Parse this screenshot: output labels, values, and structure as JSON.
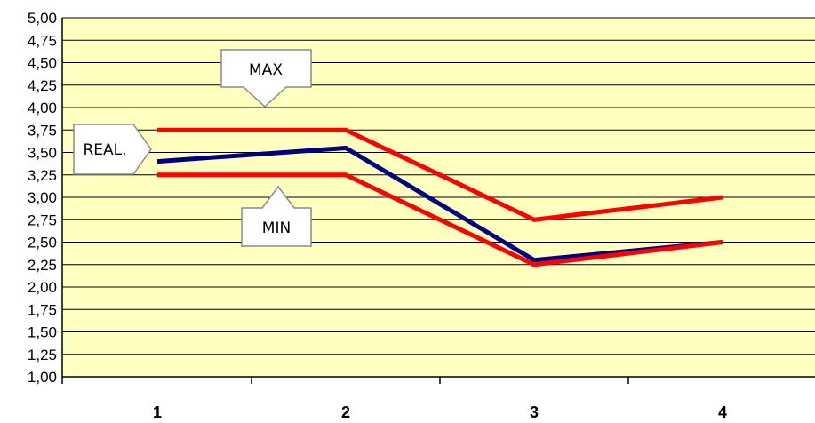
{
  "chart_data": {
    "type": "line",
    "x": [
      "1",
      "2",
      "3",
      "4"
    ],
    "ylim": [
      1.0,
      5.0
    ],
    "ystep": 0.25,
    "ytick_labels": [
      "1,00",
      "1,25",
      "1,50",
      "1,75",
      "2,00",
      "2,25",
      "2,50",
      "2,75",
      "3,00",
      "3,25",
      "3,50",
      "3,75",
      "4,00",
      "4,25",
      "4,50",
      "4,75",
      "5,00"
    ],
    "grid": true,
    "plot_background": "#FFFFC0",
    "series": [
      {
        "key": "max",
        "values": [
          3.75,
          3.75,
          2.75,
          3.0
        ],
        "color": "#FF0000"
      },
      {
        "key": "real",
        "values": [
          3.4,
          3.55,
          2.3,
          2.5
        ],
        "color": "#000080"
      },
      {
        "key": "min",
        "values": [
          3.25,
          3.25,
          2.25,
          2.5
        ],
        "color": "#FF0000"
      }
    ],
    "annotations": {
      "max": "MAX",
      "real": "REAL.",
      "min": "MIN"
    }
  }
}
